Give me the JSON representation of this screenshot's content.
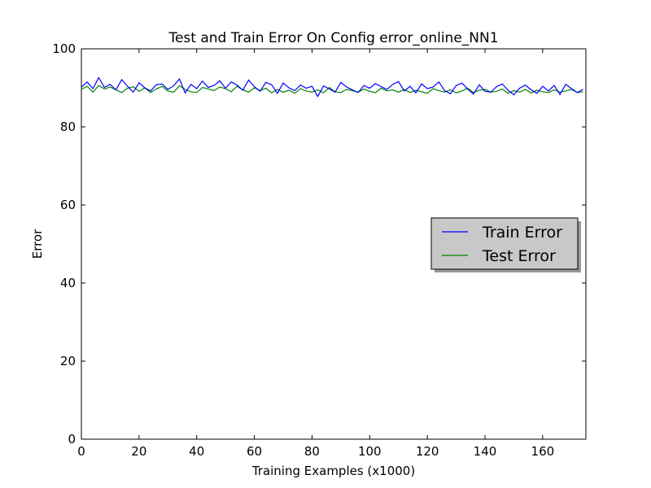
{
  "chart_data": {
    "type": "line",
    "title": "Test and Train Error On Config error_online_NN1",
    "xlabel": "Training Examples (x1000)",
    "ylabel": "Error",
    "xlim": [
      0,
      175
    ],
    "ylim": [
      0,
      100
    ],
    "xticks": [
      "0",
      "20",
      "40",
      "60",
      "80",
      "100",
      "120",
      "140",
      "160"
    ],
    "yticks": [
      "0",
      "20",
      "40",
      "60",
      "80",
      "100"
    ],
    "grid": false,
    "legend_position": "center-right",
    "series": [
      {
        "name": "Train Error",
        "color": "#0000ff",
        "x": [
          0,
          2,
          4,
          6,
          8,
          10,
          12,
          14,
          16,
          18,
          20,
          22,
          24,
          26,
          28,
          30,
          32,
          34,
          36,
          38,
          40,
          42,
          44,
          46,
          48,
          50,
          52,
          54,
          56,
          58,
          60,
          62,
          64,
          66,
          68,
          70,
          72,
          74,
          76,
          78,
          80,
          82,
          84,
          86,
          88,
          90,
          92,
          94,
          96,
          98,
          100,
          102,
          104,
          106,
          108,
          110,
          112,
          114,
          116,
          118,
          120,
          122,
          124,
          126,
          128,
          130,
          132,
          134,
          136,
          138,
          140,
          142,
          144,
          146,
          148,
          150,
          152,
          154,
          156,
          158,
          160,
          162,
          164,
          166,
          168,
          170,
          172,
          174
        ],
        "values": [
          90.2,
          91.5,
          89.8,
          92.6,
          90.1,
          90.9,
          89.5,
          92.1,
          90.4,
          88.9,
          91.3,
          90.0,
          89.2,
          90.8,
          91.0,
          89.6,
          90.5,
          92.3,
          88.7,
          90.9,
          89.8,
          91.7,
          90.1,
          90.6,
          91.8,
          89.9,
          91.5,
          90.7,
          89.4,
          92.0,
          90.3,
          89.1,
          91.4,
          90.8,
          88.6,
          91.2,
          90.0,
          89.3,
          90.7,
          89.9,
          90.4,
          87.8,
          90.5,
          89.7,
          88.9,
          91.4,
          90.2,
          89.5,
          88.8,
          90.6,
          89.9,
          91.1,
          90.3,
          89.6,
          90.9,
          91.6,
          89.2,
          90.4,
          88.7,
          91.0,
          89.8,
          90.2,
          91.5,
          89.3,
          88.5,
          90.6,
          91.2,
          89.7,
          88.4,
          90.8,
          89.1,
          88.9,
          90.3,
          91.0,
          89.4,
          88.2,
          89.9,
          90.7,
          89.5,
          88.6,
          90.4,
          89.2,
          90.6,
          88.3,
          90.9,
          89.8,
          88.8,
          89.6
        ]
      },
      {
        "name": "Test Error",
        "color": "#007f00",
        "x": [
          0,
          2,
          4,
          6,
          8,
          10,
          12,
          14,
          16,
          18,
          20,
          22,
          24,
          26,
          28,
          30,
          32,
          34,
          36,
          38,
          40,
          42,
          44,
          46,
          48,
          50,
          52,
          54,
          56,
          58,
          60,
          62,
          64,
          66,
          68,
          70,
          72,
          74,
          76,
          78,
          80,
          82,
          84,
          86,
          88,
          90,
          92,
          94,
          96,
          98,
          100,
          102,
          104,
          106,
          108,
          110,
          112,
          114,
          116,
          118,
          120,
          122,
          124,
          126,
          128,
          130,
          132,
          134,
          136,
          138,
          140,
          142,
          144,
          146,
          148,
          150,
          152,
          154,
          156,
          158,
          160,
          162,
          164,
          166,
          168,
          170,
          172,
          174
        ],
        "values": [
          89.6,
          90.4,
          88.9,
          90.6,
          89.7,
          90.2,
          89.5,
          88.8,
          89.9,
          90.3,
          89.1,
          90.0,
          88.8,
          89.7,
          90.4,
          89.2,
          88.9,
          90.5,
          89.6,
          89.0,
          88.8,
          90.1,
          89.7,
          89.3,
          90.2,
          89.8,
          89.0,
          90.4,
          89.5,
          88.9,
          90.0,
          89.3,
          89.9,
          88.7,
          89.6,
          88.9,
          89.4,
          88.6,
          89.8,
          89.2,
          88.9,
          89.5,
          88.7,
          90.1,
          89.0,
          88.8,
          89.6,
          89.3,
          88.9,
          89.7,
          89.1,
          88.8,
          89.9,
          89.2,
          89.5,
          88.9,
          89.6,
          88.8,
          89.4,
          89.0,
          88.6,
          89.8,
          89.3,
          88.9,
          89.5,
          88.7,
          89.2,
          89.9,
          88.8,
          89.4,
          89.6,
          88.9,
          89.1,
          89.7,
          88.6,
          89.3,
          88.9,
          89.6,
          88.7,
          89.4,
          89.0,
          88.8,
          89.5,
          88.9,
          89.2,
          89.6,
          88.8,
          89.0
        ]
      }
    ]
  }
}
